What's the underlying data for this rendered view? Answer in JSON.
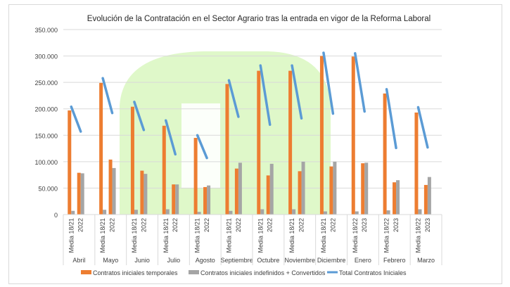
{
  "chart_data": {
    "type": "bar",
    "title": "Evolución de la Contratación en el Sector Agrario tras la entrada en vigor de la Reforma Laboral",
    "ylim": [
      0,
      350000
    ],
    "yticks": [
      "0",
      "50.000",
      "100.000",
      "150.000",
      "200.000",
      "250.000",
      "300.000",
      "350.000"
    ],
    "grid": true,
    "legend_position": "bottom",
    "groups": [
      {
        "month": "Abril",
        "periods": [
          "Media 18/21",
          "2022"
        ]
      },
      {
        "month": "Mayo",
        "periods": [
          "Media 18/21",
          "2022"
        ]
      },
      {
        "month": "Junio",
        "periods": [
          "Media 18/21",
          "2022"
        ]
      },
      {
        "month": "Julio",
        "periods": [
          "Media 18/21",
          "2022"
        ]
      },
      {
        "month": "Agosto",
        "periods": [
          "Media 18/21",
          "2022"
        ]
      },
      {
        "month": "Septiembre",
        "periods": [
          "Media 18/21",
          "2022"
        ]
      },
      {
        "month": "Octubre",
        "periods": [
          "Media 18/21",
          "2022"
        ]
      },
      {
        "month": "Noviembre",
        "periods": [
          "Media 18/21",
          "2022"
        ]
      },
      {
        "month": "Diciembre",
        "periods": [
          "Media 18/21",
          "2022"
        ]
      },
      {
        "month": "Enero",
        "periods": [
          "Media 18/22",
          "2023"
        ]
      },
      {
        "month": "Febrero",
        "periods": [
          "Media 18/22",
          "2023"
        ]
      },
      {
        "month": "Marzo",
        "periods": [
          "Media 18/22",
          "2023"
        ]
      }
    ],
    "series": [
      {
        "name": "Contratos iniciales temporales",
        "type": "bar",
        "color": "#ed7d31",
        "values": [
          [
            197000,
            79000
          ],
          [
            249000,
            104000
          ],
          [
            204000,
            83000
          ],
          [
            168000,
            57000
          ],
          [
            145000,
            52000
          ],
          [
            247000,
            87000
          ],
          [
            272000,
            74000
          ],
          [
            272000,
            82000
          ],
          [
            300000,
            91000
          ],
          [
            299000,
            97000
          ],
          [
            229000,
            61000
          ],
          [
            193000,
            56000
          ]
        ]
      },
      {
        "name": "Contratos iniciales indefinidos + Convertidos",
        "type": "bar",
        "color": "#a5a5a5",
        "values": [
          [
            7000,
            78000
          ],
          [
            9000,
            88000
          ],
          [
            9000,
            77000
          ],
          [
            10000,
            57000
          ],
          [
            5000,
            55000
          ],
          [
            7000,
            98000
          ],
          [
            10000,
            96000
          ],
          [
            10000,
            100000
          ],
          [
            6000,
            100000
          ],
          [
            6000,
            98000
          ],
          [
            8000,
            65000
          ],
          [
            10000,
            71000
          ]
        ]
      },
      {
        "name": "Total Contratos Iniciales",
        "type": "line",
        "color": "#5b9bd5",
        "values": [
          [
            204000,
            157000
          ],
          [
            258000,
            192000
          ],
          [
            213000,
            160000
          ],
          [
            178000,
            114000
          ],
          [
            150000,
            107000
          ],
          [
            254000,
            185000
          ],
          [
            282000,
            170000
          ],
          [
            282000,
            182000
          ],
          [
            306000,
            191000
          ],
          [
            305000,
            195000
          ],
          [
            237000,
            126000
          ],
          [
            203000,
            127000
          ]
        ]
      }
    ]
  }
}
